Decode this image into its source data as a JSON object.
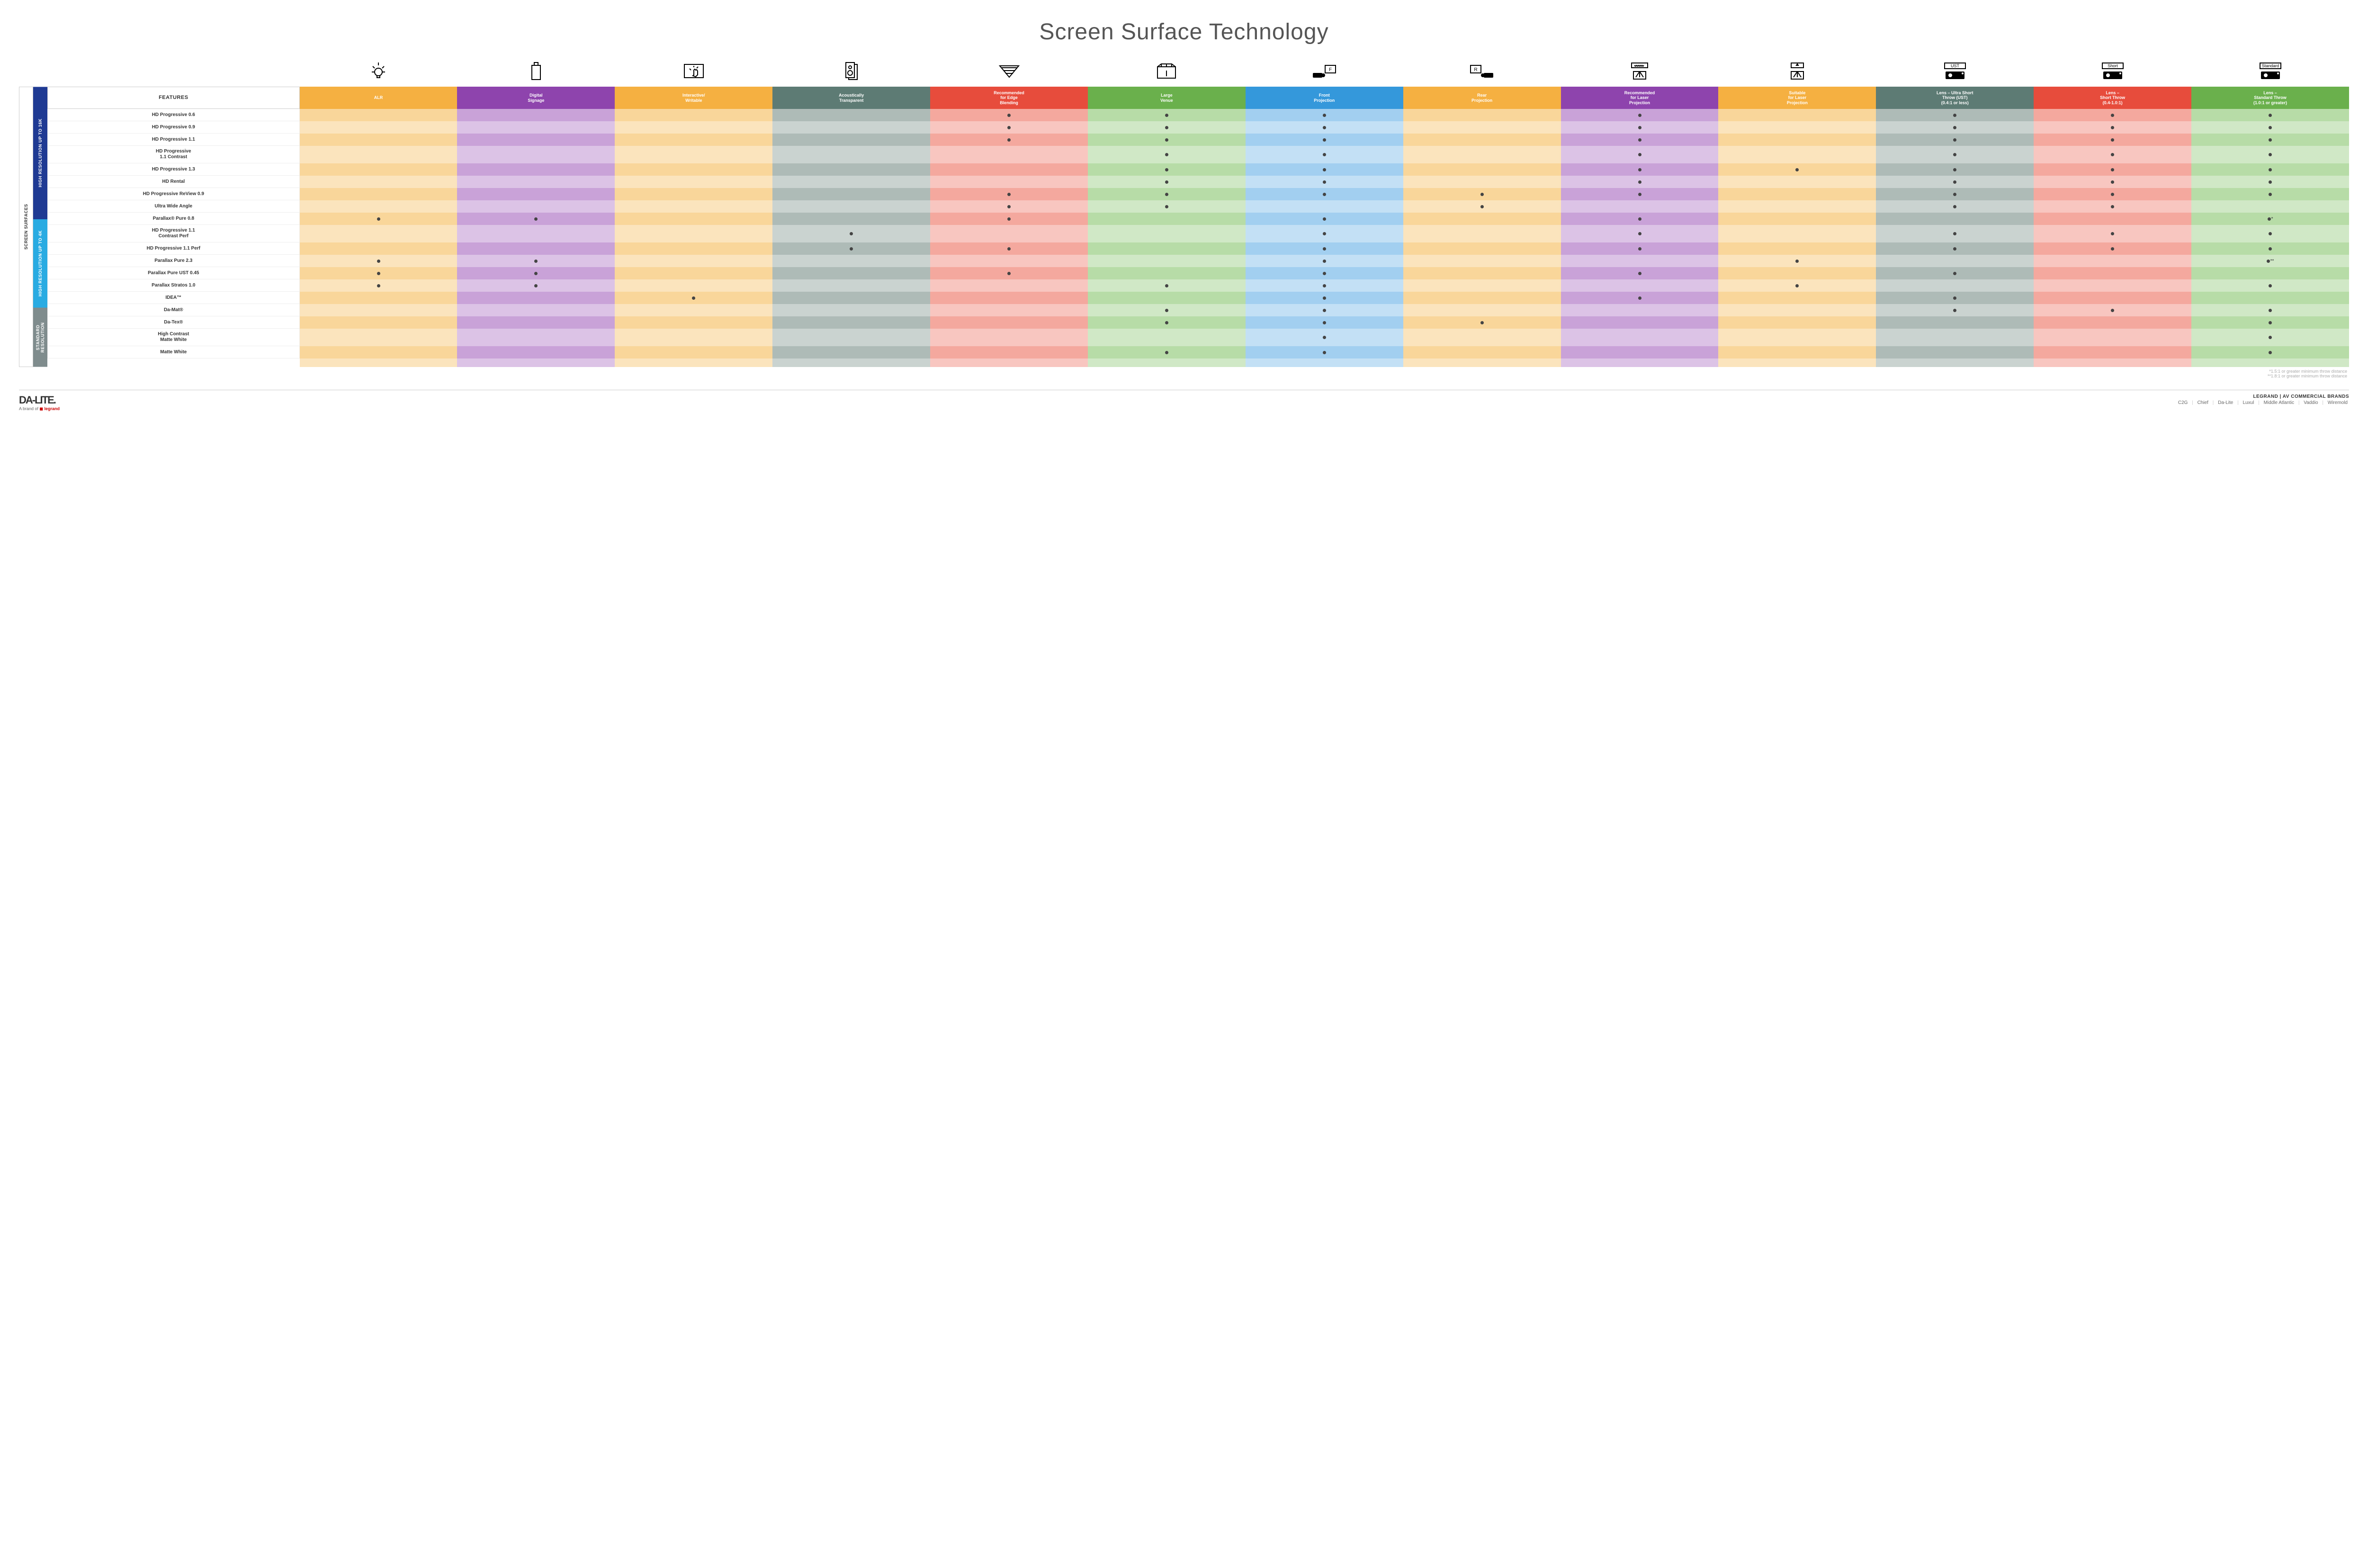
{
  "title": "Screen Surface Technology",
  "grid": {
    "feature_col_width_fr": 1.6,
    "data_col_width_fr": 1
  },
  "colors": {
    "dot": "#444444",
    "side_outer": "#ffffff",
    "side_outer_text": "#333333"
  },
  "columns": [
    {
      "key": "alr",
      "label": "ALR",
      "color": "#f5b041",
      "alt": "#f9d69a",
      "icon": "bulb"
    },
    {
      "key": "sig",
      "label": "Digital\nSignage",
      "color": "#8e44ad",
      "alt": "#c9a2d8",
      "icon": "signage"
    },
    {
      "key": "int",
      "label": "Interactive/\nWritable",
      "color": "#f5b041",
      "alt": "#f9d69a",
      "icon": "touch"
    },
    {
      "key": "aco",
      "label": "Acoustically\nTransparent",
      "color": "#5d7b74",
      "alt": "#aebbb7",
      "icon": "speaker"
    },
    {
      "key": "edg",
      "label": "Recommended\nfor Edge\nBlending",
      "color": "#e74c3c",
      "alt": "#f4a89e",
      "icon": "blend"
    },
    {
      "key": "lvn",
      "label": "Large\nVenue",
      "color": "#6ab04c",
      "alt": "#b7dca7",
      "icon": "venue"
    },
    {
      "key": "frt",
      "label": "Front\nProjection",
      "color": "#3498db",
      "alt": "#a2cff0",
      "icon": "front"
    },
    {
      "key": "rer",
      "label": "Rear\nProjection",
      "color": "#f5b041",
      "alt": "#f9d69a",
      "icon": "rear"
    },
    {
      "key": "rlp",
      "label": "Recommended\nfor Laser\nProjection",
      "color": "#8e44ad",
      "alt": "#c9a2d8",
      "icon": "laser-rec"
    },
    {
      "key": "slp",
      "label": "Suitable\nfor Laser\nProjection",
      "color": "#f5b041",
      "alt": "#f9d69a",
      "icon": "laser-ok"
    },
    {
      "key": "ust",
      "label": "Lens – Ultra Short\nThrow (UST)\n(0.4:1 or less)",
      "color": "#5d7b74",
      "alt": "#aebbb7",
      "icon": "ust"
    },
    {
      "key": "sht",
      "label": "Lens –\nShort Throw\n(0.4-1.0:1)",
      "color": "#e74c3c",
      "alt": "#f4a89e",
      "icon": "short"
    },
    {
      "key": "std",
      "label": "Lens –\nStandard Throw\n(1.0:1 or greater)",
      "color": "#6ab04c",
      "alt": "#b7dca7",
      "icon": "standard"
    }
  ],
  "groups": [
    {
      "label": "HIGH RESOLUTION UP TO 16K",
      "color": "#1f3a93",
      "rows": [
        {
          "label": "HD Progressive 0.6",
          "dots": {
            "edg": "•",
            "lvn": "•",
            "frt": "•",
            "rlp": "•",
            "ust": "•",
            "sht": "•",
            "std": "•"
          }
        },
        {
          "label": "HD Progressive 0.9",
          "dots": {
            "edg": "•",
            "lvn": "•",
            "frt": "•",
            "rlp": "•",
            "ust": "•",
            "sht": "•",
            "std": "•"
          }
        },
        {
          "label": "HD Progressive 1.1",
          "dots": {
            "edg": "•",
            "lvn": "•",
            "frt": "•",
            "rlp": "•",
            "ust": "•",
            "sht": "•",
            "std": "•"
          }
        },
        {
          "label": "HD Progressive\n1.1 Contrast",
          "dots": {
            "lvn": "•",
            "frt": "•",
            "rlp": "•",
            "ust": "•",
            "sht": "•",
            "std": "•"
          }
        },
        {
          "label": "HD Progressive 1.3",
          "dots": {
            "lvn": "•",
            "frt": "•",
            "rlp": "•",
            "slp": "•",
            "ust": "•",
            "sht": "•",
            "std": "•"
          }
        },
        {
          "label": "HD Rental",
          "dots": {
            "lvn": "•",
            "frt": "•",
            "rlp": "•",
            "ust": "•",
            "sht": "•",
            "std": "•"
          }
        },
        {
          "label": "HD Progressive ReView 0.9",
          "dots": {
            "edg": "•",
            "lvn": "•",
            "frt": "•",
            "rer": "•",
            "rlp": "•",
            "ust": "•",
            "sht": "•",
            "std": "•"
          }
        },
        {
          "label": "Ultra Wide Angle",
          "dots": {
            "edg": "•",
            "lvn": "•",
            "rer": "•",
            "ust": "•",
            "sht": "•"
          }
        },
        {
          "label": "Parallax® Pure 0.8",
          "dots": {
            "alr": "•",
            "sig": "•",
            "edg": "•",
            "frt": "•",
            "rlp": "•",
            "std": "•*"
          }
        }
      ]
    },
    {
      "label": "HIGH RESOLUTION UP TO 4K",
      "color": "#29abe2",
      "rows": [
        {
          "label": "HD Progressive 1.1\nContrast Perf",
          "dots": {
            "aco": "•",
            "frt": "•",
            "rlp": "•",
            "ust": "•",
            "sht": "•",
            "std": "•"
          }
        },
        {
          "label": "HD Progressive 1.1 Perf",
          "dots": {
            "aco": "•",
            "edg": "•",
            "frt": "•",
            "rlp": "•",
            "ust": "•",
            "sht": "•",
            "std": "•"
          }
        },
        {
          "label": "Parallax Pure 2.3",
          "dots": {
            "alr": "•",
            "sig": "•",
            "frt": "•",
            "slp": "•",
            "std": "•**"
          }
        },
        {
          "label": "Parallax Pure UST 0.45",
          "dots": {
            "alr": "•",
            "sig": "•",
            "edg": "•",
            "frt": "•",
            "rlp": "•",
            "ust": "•"
          }
        },
        {
          "label": "Parallax Stratos 1.0",
          "dots": {
            "alr": "•",
            "sig": "•",
            "lvn": "•",
            "frt": "•",
            "slp": "•",
            "std": "•"
          }
        },
        {
          "label": "IDEA™",
          "dots": {
            "int": "•",
            "frt": "•",
            "rlp": "•",
            "ust": "•"
          }
        }
      ]
    },
    {
      "label": "STANDARD\nRESOLUTION",
      "color": "#7f8c8d",
      "rows": [
        {
          "label": "Da-Mat®",
          "dots": {
            "lvn": "•",
            "frt": "•",
            "ust": "•",
            "sht": "•",
            "std": "•"
          }
        },
        {
          "label": "Da-Tex®",
          "dots": {
            "lvn": "•",
            "frt": "•",
            "rer": "•",
            "std": "•"
          }
        },
        {
          "label": "High Contrast\nMatte White",
          "dots": {
            "frt": "•",
            "std": "•"
          }
        },
        {
          "label": "Matte White",
          "dots": {
            "lvn": "•",
            "frt": "•",
            "std": "•"
          }
        }
      ]
    }
  ],
  "side_outer_label": "SCREEN SURFACES",
  "footnotes": [
    "*1.5:1 or greater minimum throw distance",
    "**1.8:1 or greater minimum throw distance"
  ],
  "footer": {
    "brand_main": "DA-LITE.",
    "brand_sub_prefix": "A brand of ",
    "brand_sub_legrand": "legrand",
    "right_title": "LEGRAND | AV COMMERCIAL BRANDS",
    "brands": [
      "C2G",
      "Chief",
      "Da-Lite",
      "Luxul",
      "Middle Atlantic",
      "Vaddio",
      "Wiremold"
    ]
  }
}
